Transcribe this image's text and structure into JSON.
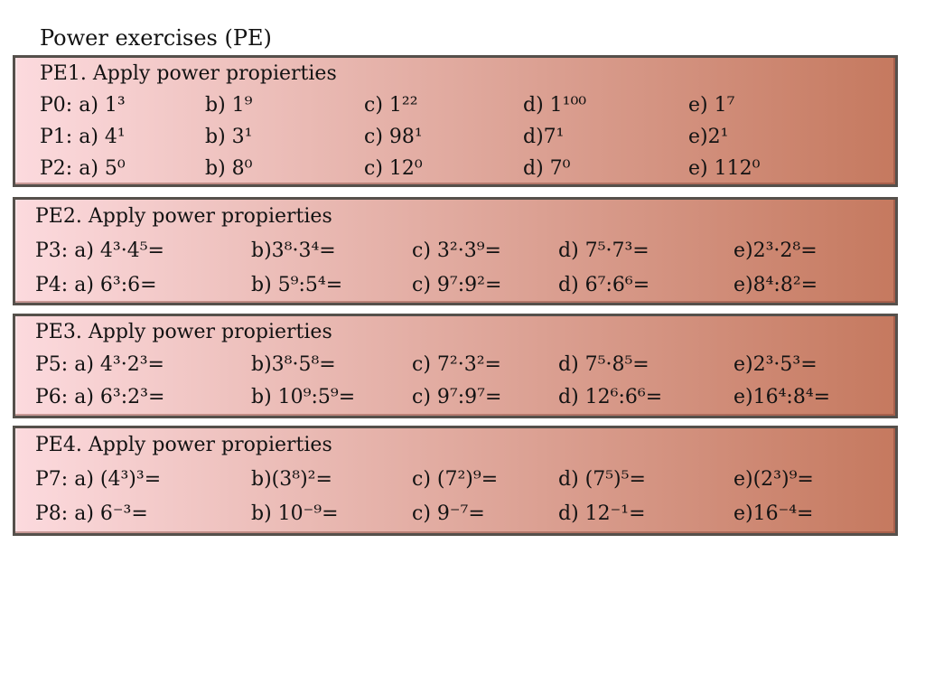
{
  "page_title": "Power exercises (PE)",
  "theme": {
    "gradient_start": "#fcdade",
    "gradient_end": "#c5795f",
    "box_border": "#55504b",
    "text": "#121212",
    "background": "#ffffff"
  },
  "boxes": [
    {
      "heading": "PE1. Apply power propierties",
      "rows": [
        {
          "cells": [
            "P0: a) 1³",
            "b) 1⁹",
            "c) 1²²",
            "d) 1¹⁰⁰",
            "e) 1⁷"
          ]
        },
        {
          "cells": [
            "P1: a) 4¹",
            "b) 3¹",
            "c) 98¹",
            "d)7¹",
            "e)2¹"
          ]
        },
        {
          "cells": [
            "P2: a) 5⁰",
            "b) 8⁰",
            "c) 12⁰",
            "d) 7⁰",
            "e) 112⁰"
          ]
        }
      ]
    },
    {
      "heading": "PE2. Apply power propierties",
      "rows": [
        {
          "cells": [
            "P3: a) 4³·4⁵=",
            "b)3⁸·3⁴=",
            "c) 3²·3⁹=",
            "d) 7⁵·7³=",
            "e)2³·2⁸="
          ]
        },
        {
          "cells": [
            "P4: a) 6³:6=",
            "b) 5⁹:5⁴=",
            "c) 9⁷:9²=",
            "d) 6⁷:6⁶=",
            "e)8⁴:8²="
          ]
        }
      ]
    },
    {
      "heading": "PE3. Apply power propierties",
      "rows": [
        {
          "cells": [
            "P5: a) 4³·2³=",
            "b)3⁸·5⁸=",
            "c) 7²·3²=",
            "d) 7⁵·8⁵=",
            "e)2³·5³="
          ]
        },
        {
          "cells": [
            "P6: a) 6³:2³=",
            "b) 10⁹:5⁹=",
            "c) 9⁷:9⁷=",
            "d) 12⁶:6⁶=",
            "e)16⁴:8⁴="
          ]
        }
      ]
    },
    {
      "heading": "PE4. Apply power propierties",
      "rows": [
        {
          "cells": [
            "P7: a) (4³)³=",
            "b)(3⁸)²=",
            "c) (7²)⁹=",
            "d) (7⁵)⁵=",
            "e)(2³)⁹="
          ]
        },
        {
          "cells": [
            "P8: a) 6⁻³=",
            "b) 10⁻⁹=",
            "c) 9⁻⁷=",
            "d) 12⁻¹=",
            "e)16⁻⁴="
          ]
        }
      ]
    }
  ]
}
